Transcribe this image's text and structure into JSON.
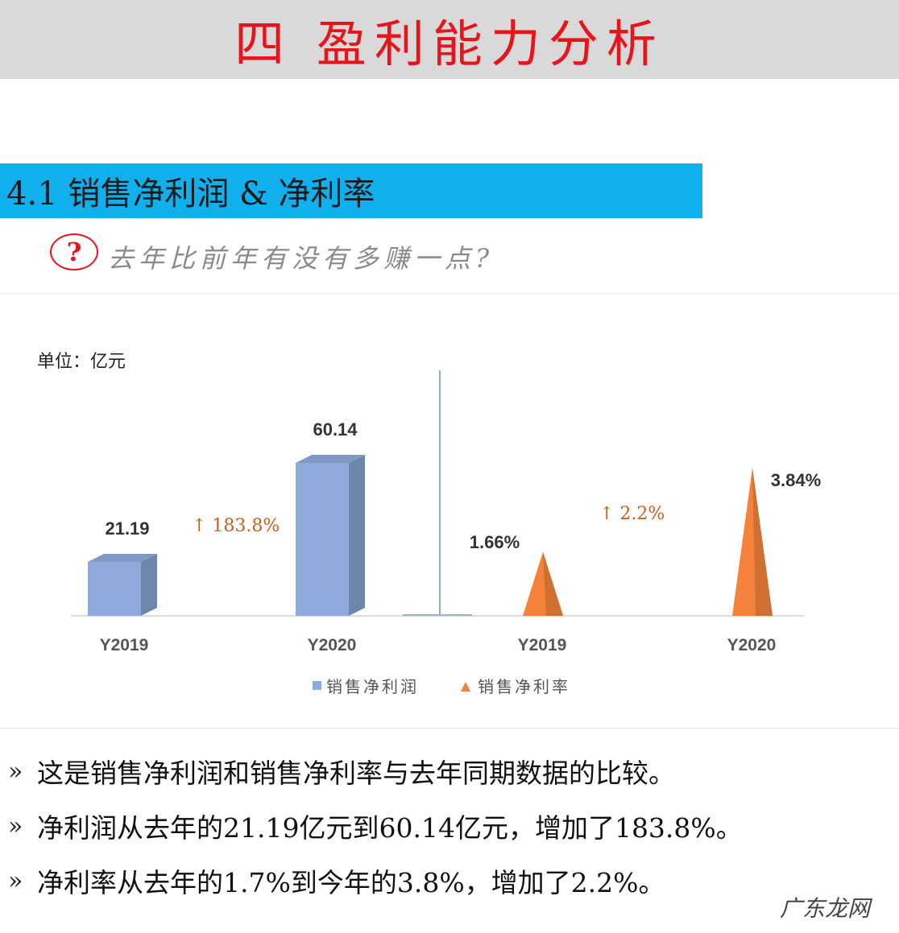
{
  "header": {
    "title": "四 盈利能力分析"
  },
  "section": {
    "heading": "4.1 销售净利润 & 净利率",
    "question_mark": "?",
    "question": "去年比前年有没有多赚一点?"
  },
  "chart_data": {
    "type": "bar",
    "unit_label": "单位：亿元",
    "groups": [
      {
        "series": "销售净利润",
        "categories": [
          "Y2019",
          "Y2020"
        ],
        "values": [
          21.19,
          60.14
        ],
        "value_labels": [
          "21.19",
          "60.14"
        ],
        "change_label": "↑ 183.8%",
        "shape": "3d-bar",
        "color": "#8eaadb"
      },
      {
        "series": "销售净利率",
        "categories": [
          "Y2019",
          "Y2020"
        ],
        "values": [
          1.66,
          3.84
        ],
        "value_labels": [
          "1.66%",
          "3.84%"
        ],
        "change_label": "↑ 2.2%",
        "shape": "cone",
        "color": "#f4823a"
      }
    ],
    "legend": [
      {
        "name": "销售净利润",
        "marker": "square",
        "color": "#8eaadb"
      },
      {
        "name": "销售净利率",
        "marker": "triangle",
        "color": "#f4823a"
      }
    ],
    "legend_position": "bottom",
    "grid": false
  },
  "bullets": {
    "items": [
      "这是销售净利润和销售净利率与去年同期数据的比较。",
      "净利润从去年的21.19亿元到60.14亿元，增加了183.8%。",
      "净利率从去年的1.7%到今年的3.8%，增加了2.2%。"
    ],
    "marker": "»"
  },
  "watermark": "广东龙网",
  "colors": {
    "title": "#e8141b",
    "section_bar": "#10b0ef",
    "change": "#c7601c"
  }
}
